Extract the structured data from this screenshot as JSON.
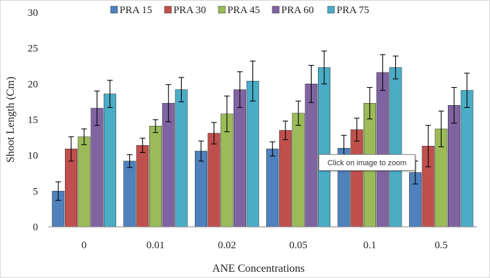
{
  "chart_data": {
    "type": "bar",
    "title": "",
    "xlabel": "ANE Concentrations",
    "ylabel": "Shoot Length (Cm)",
    "ylim": [
      0,
      30
    ],
    "yticks": [
      0,
      5,
      10,
      15,
      20,
      25,
      30
    ],
    "legend_position": "top",
    "categories": [
      "0",
      "0.01",
      "0.02",
      "0.05",
      "0.1",
      "0.5"
    ],
    "series": [
      {
        "name": "PRA 15",
        "color": "#4f81bd",
        "values": [
          5.0,
          9.2,
          10.6,
          10.9,
          11.0,
          7.6
        ],
        "errors": [
          1.3,
          0.9,
          1.4,
          1.0,
          1.8,
          1.6
        ]
      },
      {
        "name": "PRA 30",
        "color": "#c0504d",
        "values": [
          10.9,
          11.4,
          13.1,
          13.5,
          13.6,
          11.3
        ],
        "errors": [
          1.7,
          1.0,
          1.5,
          1.3,
          1.6,
          2.9
        ]
      },
      {
        "name": "PRA 45",
        "color": "#9bbb59",
        "values": [
          12.6,
          14.1,
          15.8,
          15.9,
          17.3,
          13.7
        ],
        "errors": [
          1.1,
          0.9,
          2.5,
          1.7,
          2.2,
          2.5
        ]
      },
      {
        "name": "PRA 60",
        "color": "#8064a2",
        "values": [
          16.6,
          17.3,
          19.2,
          20.0,
          21.6,
          17.0
        ],
        "errors": [
          2.4,
          2.6,
          2.5,
          2.6,
          2.5,
          2.5
        ]
      },
      {
        "name": "PRA 75",
        "color": "#4bacc6",
        "values": [
          18.6,
          19.2,
          20.4,
          22.3,
          22.3,
          19.1
        ],
        "errors": [
          1.9,
          1.7,
          2.8,
          2.3,
          1.6,
          2.4
        ]
      }
    ]
  },
  "overlay": {
    "tooltip_text": "Click on image to zoom"
  }
}
